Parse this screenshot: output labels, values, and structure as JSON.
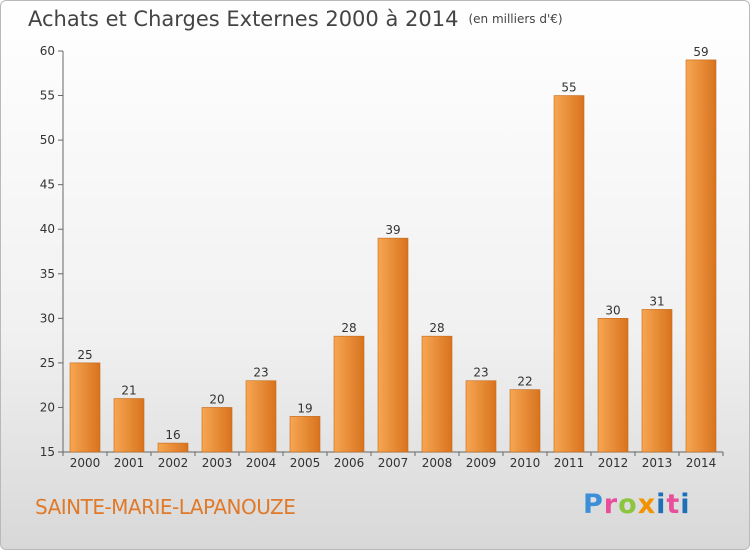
{
  "header": {
    "title": "Achats et Charges Externes 2000 à 2014",
    "unit": "(en milliers d'€)"
  },
  "footer": {
    "commune": "SAINTE-MARIE-LAPANOUZE",
    "logo": [
      "P",
      "r",
      "o",
      "x",
      "i",
      "t",
      "i"
    ]
  },
  "colors": {
    "bar_light": "#f7a652",
    "bar_dark": "#d8731e",
    "accent": "#e07a2a"
  },
  "chart_data": {
    "type": "bar",
    "title": "Achats et Charges Externes 2000 à 2014",
    "subtitle": "(en milliers d'€)",
    "xlabel": "",
    "ylabel": "",
    "categories": [
      "2000",
      "2001",
      "2002",
      "2003",
      "2004",
      "2005",
      "2006",
      "2007",
      "2008",
      "2009",
      "2010",
      "2011",
      "2012",
      "2013",
      "2014"
    ],
    "values": [
      25,
      21,
      16,
      20,
      23,
      19,
      28,
      39,
      28,
      23,
      22,
      55,
      30,
      31,
      59
    ],
    "ylim": [
      15,
      60
    ],
    "yticks": [
      15,
      20,
      25,
      30,
      35,
      40,
      45,
      50,
      55,
      60
    ],
    "grid": false
  }
}
